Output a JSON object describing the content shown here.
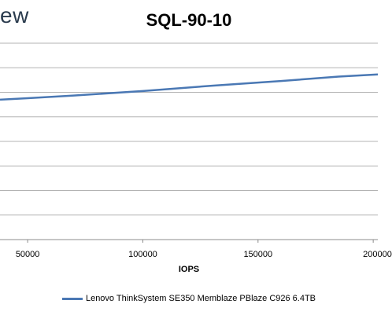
{
  "logo": {
    "text": "ew"
  },
  "chart_data": {
    "type": "line",
    "title": "SQL-90-10",
    "xlabel": "IOPS",
    "ylabel": "",
    "x_ticks": [
      50000,
      100000,
      150000,
      200000
    ],
    "x_tick_labels": [
      "50000",
      "100000",
      "150000",
      "200000"
    ],
    "xlim": [
      38000,
      202000
    ],
    "ylim": [
      0,
      8
    ],
    "grid": true,
    "legend_position": "bottom",
    "series": [
      {
        "name": "Lenovo ThinkSystem SE350 Memblaze PBlaze C926 6.4TB",
        "color": "#4a78b4",
        "x": [
          38000,
          50000,
          70000,
          100000,
          130000,
          160000,
          185000,
          202000
        ],
        "y": [
          5.7,
          5.76,
          5.87,
          6.05,
          6.27,
          6.46,
          6.64,
          6.73
        ]
      }
    ]
  }
}
